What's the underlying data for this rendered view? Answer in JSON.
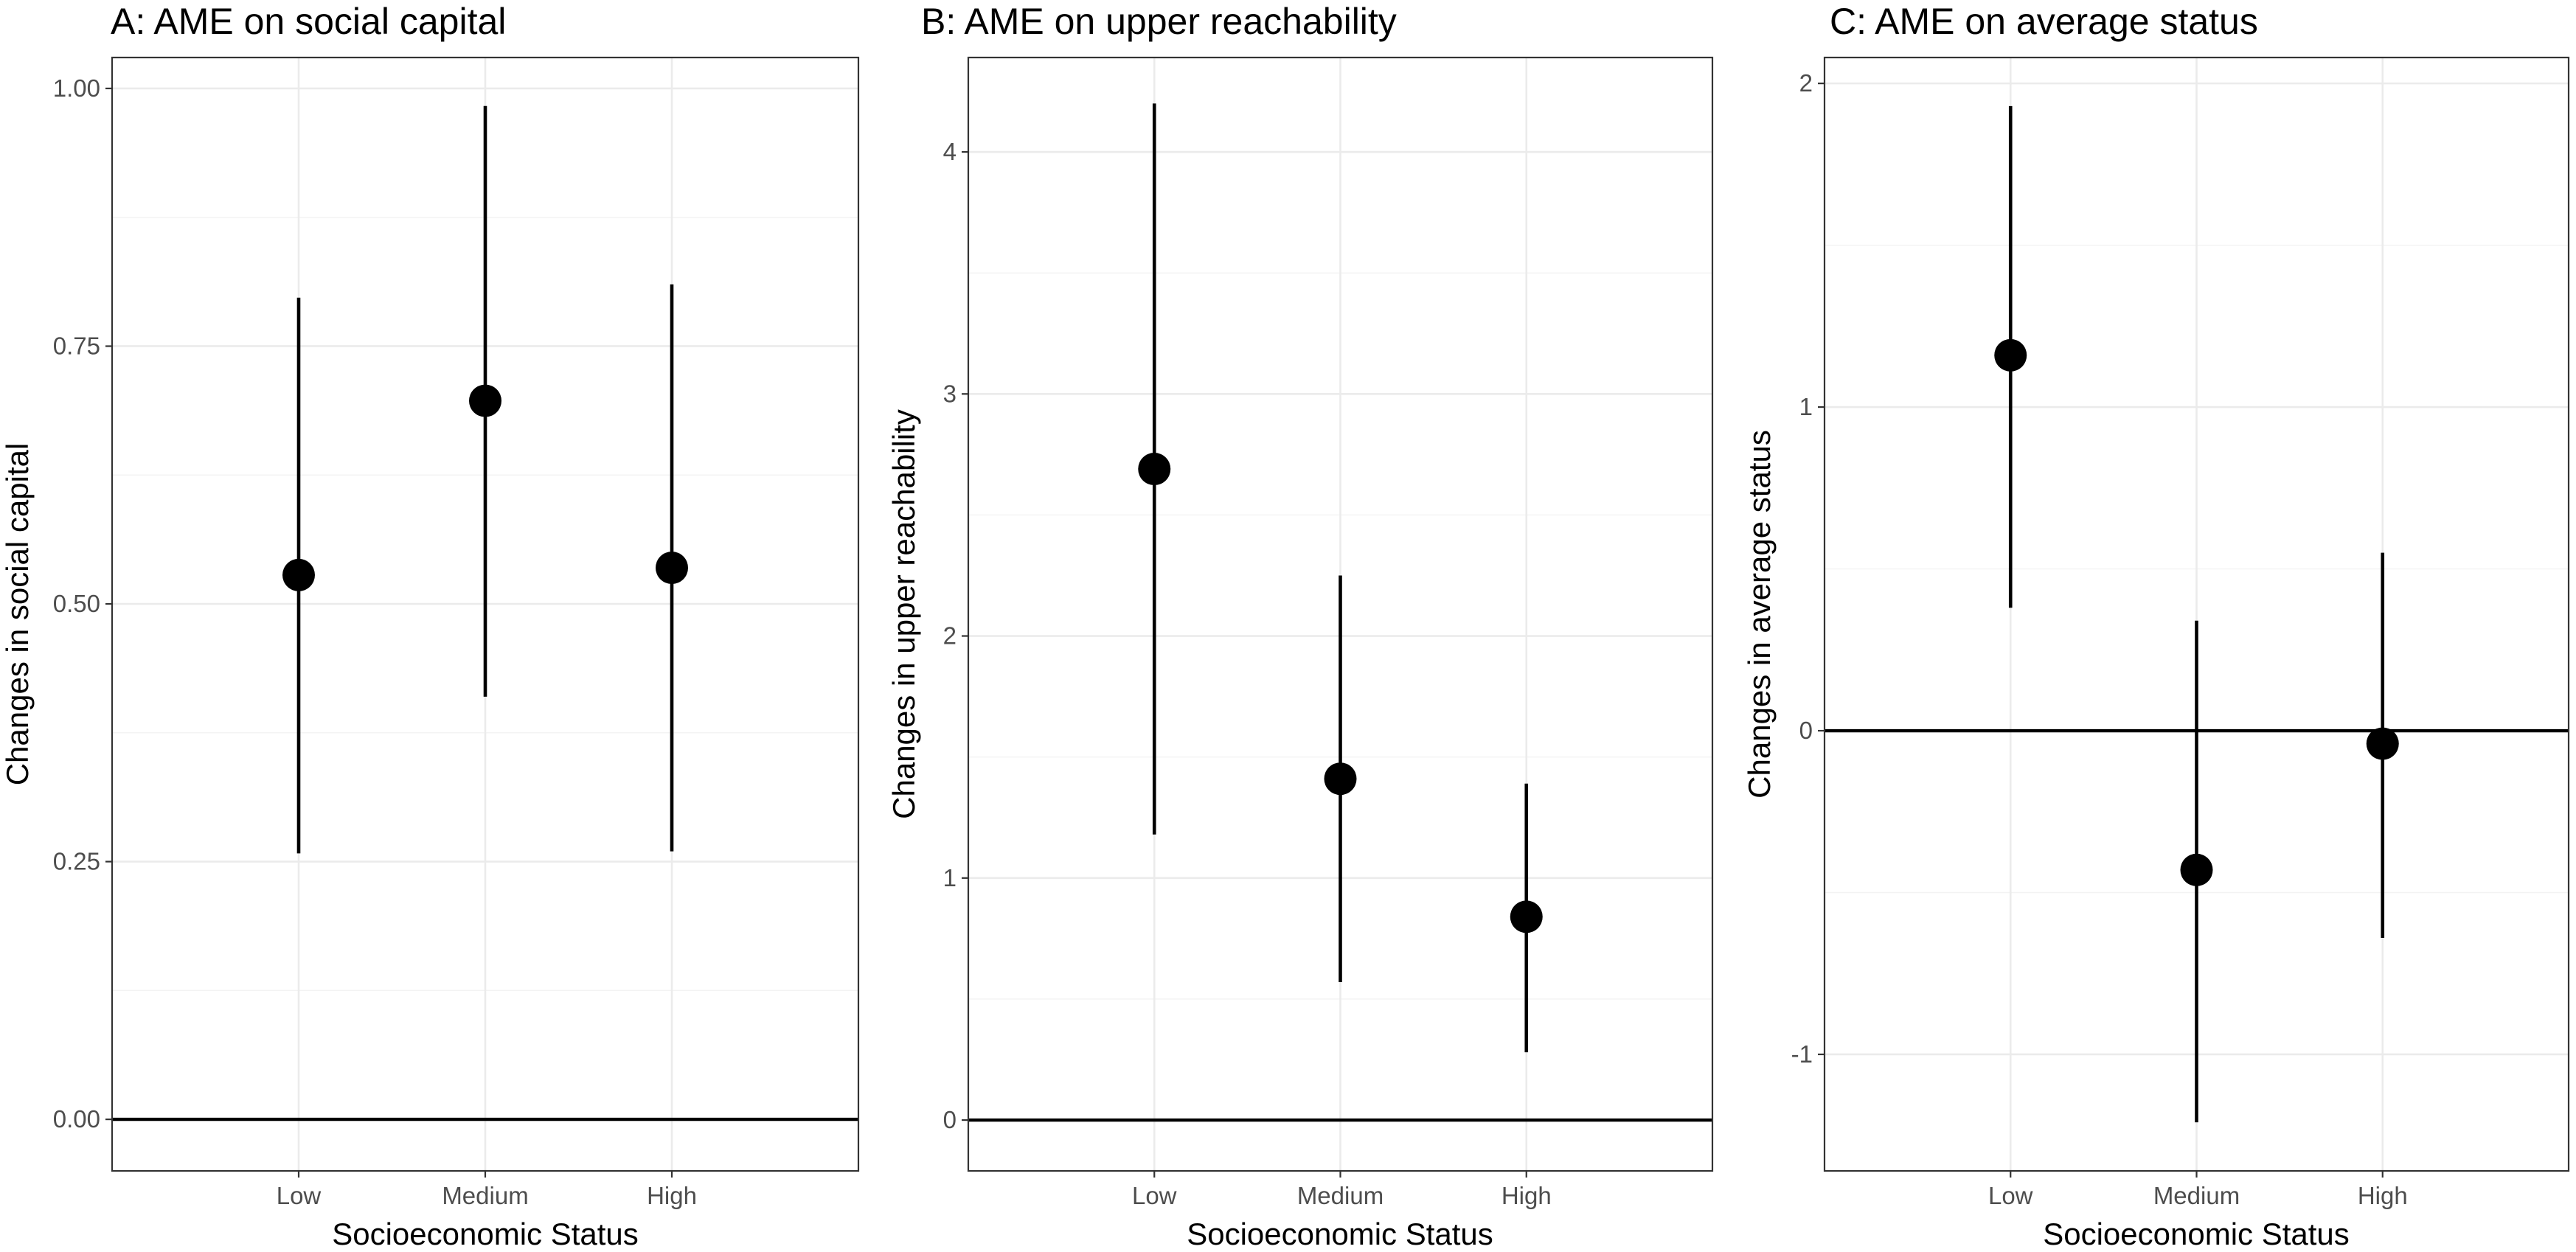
{
  "chart_data": [
    {
      "type": "scatter",
      "title": "A: AME on social capital",
      "xlabel": "Socioeconomic Status",
      "ylabel": "Changes in social capital",
      "categories": [
        "Low",
        "Medium",
        "High"
      ],
      "ylim": [
        -0.05,
        1.03
      ],
      "yticks": [
        0.0,
        0.25,
        0.5,
        0.75,
        1.0
      ],
      "ytick_labels": [
        "0.00",
        "0.25",
        "0.50",
        "0.75",
        "1.00"
      ],
      "reference_line": 0,
      "grid": true,
      "estimates": [
        0.528,
        0.697,
        0.535
      ],
      "ci_lower": [
        0.258,
        0.41,
        0.26
      ],
      "ci_upper": [
        0.797,
        0.983,
        0.81
      ]
    },
    {
      "type": "scatter",
      "title": "B: AME on upper reachability",
      "xlabel": "Socioeconomic Status",
      "ylabel": "Changes in upper reachability",
      "categories": [
        "Low",
        "Medium",
        "High"
      ],
      "ylim": [
        -0.21,
        4.39
      ],
      "yticks": [
        0,
        1,
        2,
        3,
        4
      ],
      "ytick_labels": [
        "0",
        "1",
        "2",
        "3",
        "4"
      ],
      "reference_line": 0,
      "grid": true,
      "estimates": [
        2.69,
        1.41,
        0.84
      ],
      "ci_lower": [
        1.18,
        0.57,
        0.28
      ],
      "ci_upper": [
        4.2,
        2.25,
        1.39
      ]
    },
    {
      "type": "scatter",
      "title": "C: AME on average status",
      "xlabel": "Socioeconomic Status",
      "ylabel": "Changes in average status",
      "categories": [
        "Low",
        "Medium",
        "High"
      ],
      "ylim": [
        -1.36,
        2.08
      ],
      "yticks": [
        -1,
        0,
        1,
        2
      ],
      "ytick_labels": [
        "-1",
        "0",
        "1",
        "2"
      ],
      "reference_line": 0,
      "grid": true,
      "estimates": [
        1.16,
        -0.43,
        -0.04
      ],
      "ci_lower": [
        0.38,
        -1.21,
        -0.64
      ],
      "ci_upper": [
        1.93,
        0.34,
        0.55
      ]
    }
  ]
}
